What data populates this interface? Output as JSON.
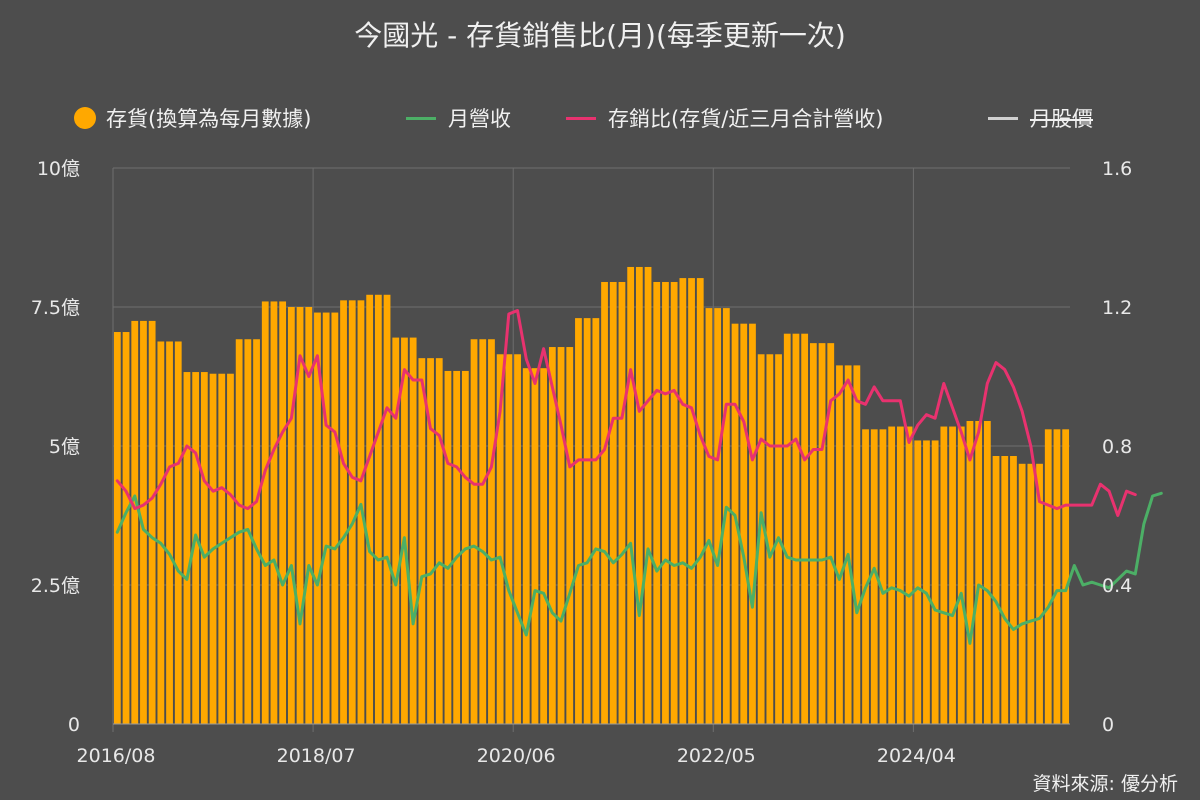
{
  "chart_data": {
    "type": "bar",
    "title": "今國光 - 存貨銷售比(月)(每季更新一次)",
    "source": "資料來源: 優分析",
    "legend": [
      {
        "label": "存貨(換算為每月數據)",
        "color": "#ffa800",
        "marker": "dot",
        "hidden": false
      },
      {
        "label": "月營收",
        "color": "#4caf66",
        "marker": "line",
        "hidden": false
      },
      {
        "label": "存銷比(存貨/近三月合計營收)",
        "color": "#e8326f",
        "marker": "line",
        "hidden": false
      },
      {
        "label": "月股價",
        "color": "#d0d0d0",
        "marker": "line",
        "hidden": true
      }
    ],
    "x_tick_labels": [
      "2016/08",
      "2018/07",
      "2020/06",
      "2022/05",
      "2024/04"
    ],
    "y_left": {
      "ticks": [
        0,
        2.5,
        5,
        7.5,
        10
      ],
      "tick_labels": [
        "0",
        "2.5億",
        "5億",
        "7.5億",
        "10億"
      ],
      "range": [
        0,
        10
      ],
      "unit": "億"
    },
    "y_right": {
      "ticks": [
        0,
        0.4,
        0.8,
        1.2,
        1.6
      ],
      "tick_labels": [
        "0",
        "0.4",
        "0.8",
        "1.2",
        "1.6"
      ],
      "range": [
        0,
        1.6
      ]
    },
    "grid": true,
    "start_month": "2016/08",
    "series": [
      {
        "name": "存貨(換算為每月數據)",
        "type": "bar",
        "axis": "left",
        "color": "#ffa800",
        "values": [
          7.05,
          7.05,
          7.25,
          7.25,
          7.25,
          6.88,
          6.88,
          6.88,
          6.33,
          6.33,
          6.33,
          6.3,
          6.3,
          6.3,
          6.92,
          6.92,
          6.92,
          7.6,
          7.6,
          7.6,
          7.5,
          7.5,
          7.5,
          7.4,
          7.4,
          7.4,
          7.62,
          7.62,
          7.62,
          7.72,
          7.72,
          7.72,
          6.95,
          6.95,
          6.95,
          6.58,
          6.58,
          6.58,
          6.35,
          6.35,
          6.35,
          6.92,
          6.92,
          6.92,
          6.65,
          6.65,
          6.65,
          6.4,
          6.4,
          6.4,
          6.78,
          6.78,
          6.78,
          7.3,
          7.3,
          7.3,
          7.95,
          7.95,
          7.95,
          8.22,
          8.22,
          8.22,
          7.95,
          7.95,
          7.95,
          8.02,
          8.02,
          8.02,
          7.48,
          7.48,
          7.48,
          7.2,
          7.2,
          7.2,
          6.65,
          6.65,
          6.65,
          7.02,
          7.02,
          7.02,
          6.85,
          6.85,
          6.85,
          6.45,
          6.45,
          6.45,
          5.3,
          5.3,
          5.3,
          5.35,
          5.35,
          5.35,
          5.1,
          5.1,
          5.1,
          5.35,
          5.35,
          5.35,
          5.45,
          5.45,
          5.45,
          4.82,
          4.82,
          4.82,
          4.68,
          4.68,
          4.68,
          5.3,
          5.3,
          5.3
        ]
      },
      {
        "name": "月營收",
        "type": "line",
        "axis": "left",
        "color": "#4caf66",
        "values": [
          3.45,
          3.8,
          4.1,
          3.5,
          3.35,
          3.25,
          3.05,
          2.75,
          2.6,
          3.4,
          3.0,
          3.15,
          3.25,
          3.35,
          3.45,
          3.5,
          3.15,
          2.85,
          2.95,
          2.5,
          2.85,
          1.8,
          2.85,
          2.5,
          3.2,
          3.15,
          3.35,
          3.6,
          3.95,
          3.1,
          2.95,
          3.0,
          2.5,
          3.35,
          1.8,
          2.65,
          2.7,
          2.9,
          2.8,
          3.0,
          3.15,
          3.2,
          3.1,
          2.95,
          3.0,
          2.4,
          2.0,
          1.6,
          2.4,
          2.35,
          2.0,
          1.85,
          2.35,
          2.85,
          2.9,
          3.15,
          3.1,
          2.9,
          3.05,
          3.25,
          1.95,
          3.15,
          2.75,
          2.95,
          2.85,
          2.9,
          2.8,
          3.0,
          3.3,
          2.85,
          3.9,
          3.75,
          3.0,
          2.1,
          3.8,
          3.0,
          3.35,
          3.0,
          2.95,
          2.95,
          2.95,
          2.95,
          3.0,
          2.6,
          3.05,
          2.0,
          2.45,
          2.8,
          2.35,
          2.45,
          2.4,
          2.3,
          2.45,
          2.35,
          2.05,
          2.0,
          1.95,
          2.35,
          1.45,
          2.5,
          2.4,
          2.2,
          1.9,
          1.7,
          1.8,
          1.85,
          1.9,
          2.1,
          2.4,
          2.4,
          2.85,
          2.5,
          2.55,
          2.5,
          2.45,
          2.6,
          2.75,
          2.7,
          3.6,
          4.1,
          4.15
        ]
      },
      {
        "name": "存銷比(存貨/近三月合計營收)",
        "type": "line",
        "axis": "right",
        "color": "#e8326f",
        "values": [
          0.7,
          0.67,
          0.62,
          0.63,
          0.65,
          0.69,
          0.74,
          0.75,
          0.8,
          0.78,
          0.7,
          0.67,
          0.68,
          0.66,
          0.63,
          0.62,
          0.64,
          0.73,
          0.79,
          0.84,
          0.88,
          1.06,
          1.0,
          1.06,
          0.86,
          0.84,
          0.75,
          0.71,
          0.7,
          0.77,
          0.84,
          0.91,
          0.88,
          1.02,
          0.99,
          0.99,
          0.85,
          0.83,
          0.75,
          0.74,
          0.71,
          0.69,
          0.69,
          0.74,
          0.9,
          1.18,
          1.19,
          1.05,
          0.98,
          1.08,
          0.97,
          0.86,
          0.74,
          0.76,
          0.76,
          0.76,
          0.79,
          0.88,
          0.88,
          1.02,
          0.9,
          0.93,
          0.96,
          0.95,
          0.96,
          0.92,
          0.91,
          0.83,
          0.77,
          0.76,
          0.92,
          0.92,
          0.87,
          0.76,
          0.82,
          0.8,
          0.8,
          0.8,
          0.82,
          0.76,
          0.79,
          0.79,
          0.93,
          0.95,
          0.99,
          0.93,
          0.92,
          0.97,
          0.93,
          0.93,
          0.93,
          0.81,
          0.86,
          0.89,
          0.88,
          0.98,
          0.91,
          0.84,
          0.76,
          0.84,
          0.98,
          1.04,
          1.02,
          0.97,
          0.9,
          0.8,
          0.64,
          0.63,
          0.62,
          0.63,
          0.63,
          0.63,
          0.63,
          0.69,
          0.67,
          0.6,
          0.67,
          0.66
        ]
      }
    ]
  }
}
